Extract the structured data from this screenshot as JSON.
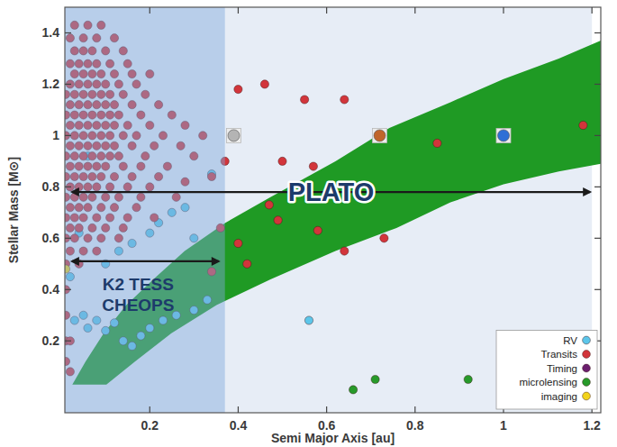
{
  "chart_data": {
    "type": "scatter",
    "xlabel": "Semi Major Axis [au]",
    "ylabel": "Stellar Mass [M⊙]",
    "xlim": [
      0.008,
      1.22
    ],
    "ylim": [
      -0.08,
      1.5
    ],
    "xticks": [
      0.2,
      0.4,
      0.6,
      0.8,
      1,
      1.2
    ],
    "yticks": [
      0.2,
      0.4,
      0.6,
      0.8,
      1,
      1.2,
      1.4
    ],
    "grid": false,
    "legend": "lower right",
    "regions": [
      {
        "x": [
          0.008,
          1.2
        ],
        "color": "#e7edf6"
      },
      {
        "x": [
          0.008,
          0.37
        ],
        "color": "#7fa8dc"
      }
    ],
    "band": {
      "color": "#1f9a24",
      "upper_x": [
        0.025,
        0.055,
        0.096,
        0.147,
        0.208,
        0.279,
        0.371,
        0.473,
        0.62,
        0.742,
        0.88,
        1.0,
        1.125,
        1.22
      ],
      "upper_y": [
        0.03,
        0.12,
        0.23,
        0.34,
        0.44,
        0.55,
        0.66,
        0.76,
        0.9,
        1.03,
        1.13,
        1.22,
        1.3,
        1.37
      ],
      "lower_x": [
        0.102,
        0.167,
        0.249,
        0.351,
        0.473,
        0.62,
        0.758,
        0.88,
        1.0,
        1.125,
        1.22
      ],
      "lower_y": [
        0.03,
        0.12,
        0.23,
        0.34,
        0.44,
        0.55,
        0.64,
        0.74,
        0.81,
        0.86,
        0.89
      ]
    },
    "arrows": [
      {
        "label": [
          "PLATO"
        ],
        "x": [
          0.02,
          1.2
        ],
        "y": 0.78
      },
      {
        "label": [
          "K2 TESS",
          "CHEOPS"
        ],
        "x": [
          0.02,
          0.36
        ],
        "y": 0.51
      }
    ],
    "solar_system": {
      "x": [
        0.39,
        0.72,
        1
      ],
      "values": [
        1,
        1,
        1
      ],
      "colors": [
        "#b4b4b4",
        "#c0652a",
        "#2f6fd6"
      ]
    },
    "series": [
      {
        "name": "RV",
        "color": "#5cc6ea",
        "marker": "circle",
        "x": [
          0.02,
          0.03,
          0.05,
          0.06,
          0.08,
          0.1,
          0.12,
          0.14,
          0.16,
          0.18,
          0.2,
          0.23,
          0.26,
          0.3,
          0.33,
          0.1,
          0.13,
          0.16,
          0.2,
          0.22,
          0.25,
          0.28,
          0.3,
          0.34,
          0.04,
          0.06,
          0.56
        ],
        "values": [
          0.45,
          0.28,
          0.3,
          0.25,
          0.28,
          0.24,
          0.27,
          0.2,
          0.18,
          0.22,
          0.25,
          0.28,
          0.3,
          0.32,
          0.36,
          0.5,
          0.55,
          0.58,
          0.62,
          0.66,
          0.7,
          0.72,
          0.6,
          0.85,
          0.62,
          0.92,
          0.28
        ]
      },
      {
        "name": "Transits",
        "color": "#d2353b",
        "marker": "circle",
        "x": [
          0.03,
          0.06,
          0.09,
          0.02,
          0.05,
          0.08,
          0.12,
          0.03,
          0.05,
          0.07,
          0.1,
          0.14,
          0.02,
          0.04,
          0.06,
          0.08,
          0.11,
          0.15,
          0.03,
          0.05,
          0.07,
          0.09,
          0.12,
          0.16,
          0.2,
          0.02,
          0.04,
          0.06,
          0.08,
          0.1,
          0.13,
          0.17,
          0.01,
          0.03,
          0.05,
          0.07,
          0.09,
          0.11,
          0.14,
          0.19,
          0.02,
          0.04,
          0.06,
          0.08,
          0.1,
          0.12,
          0.16,
          0.22,
          0.01,
          0.03,
          0.05,
          0.07,
          0.09,
          0.11,
          0.13,
          0.18,
          0.25,
          0.02,
          0.04,
          0.06,
          0.08,
          0.1,
          0.12,
          0.15,
          0.2,
          0.28,
          0.01,
          0.03,
          0.05,
          0.07,
          0.09,
          0.11,
          0.14,
          0.17,
          0.23,
          0.32,
          0.02,
          0.04,
          0.06,
          0.08,
          0.1,
          0.12,
          0.16,
          0.21,
          0.27,
          0.01,
          0.03,
          0.05,
          0.07,
          0.09,
          0.11,
          0.13,
          0.19,
          0.3,
          0.02,
          0.04,
          0.06,
          0.08,
          0.1,
          0.14,
          0.18,
          0.24,
          0.01,
          0.03,
          0.05,
          0.07,
          0.09,
          0.12,
          0.16,
          0.22,
          0.34,
          0.02,
          0.04,
          0.06,
          0.08,
          0.11,
          0.15,
          0.2,
          0.01,
          0.03,
          0.05,
          0.07,
          0.1,
          0.13,
          0.18,
          0.26,
          0.02,
          0.04,
          0.06,
          0.09,
          0.12,
          0.17,
          0.01,
          0.03,
          0.05,
          0.08,
          0.11,
          0.15,
          0.21,
          0.02,
          0.04,
          0.07,
          0.1,
          0.14,
          0.01,
          0.03,
          0.06,
          0.09,
          0.13,
          0.02,
          0.05,
          0.08,
          0.01,
          0.04,
          0.01,
          0.01,
          0.01,
          0.02,
          0.01,
          0.02,
          0.46,
          0.55,
          0.64,
          0.4,
          0.5,
          0.57,
          0.85,
          1.18,
          0.37,
          0.47,
          0.49,
          0.4,
          0.42,
          0.64,
          0.73,
          0.58,
          0.34,
          0.36,
          0.28
        ],
        "values": [
          1.43,
          1.43,
          1.43,
          1.38,
          1.38,
          1.38,
          1.38,
          1.33,
          1.33,
          1.33,
          1.33,
          1.33,
          1.28,
          1.28,
          1.28,
          1.28,
          1.28,
          1.28,
          1.24,
          1.24,
          1.24,
          1.24,
          1.24,
          1.24,
          1.24,
          1.2,
          1.2,
          1.2,
          1.2,
          1.2,
          1.2,
          1.2,
          1.16,
          1.16,
          1.16,
          1.16,
          1.16,
          1.16,
          1.16,
          1.16,
          1.12,
          1.12,
          1.12,
          1.12,
          1.12,
          1.12,
          1.12,
          1.12,
          1.08,
          1.08,
          1.08,
          1.08,
          1.08,
          1.08,
          1.08,
          1.08,
          1.08,
          1.04,
          1.04,
          1.04,
          1.04,
          1.04,
          1.04,
          1.04,
          1.04,
          1.04,
          1,
          1,
          1,
          1,
          1,
          1,
          1,
          1,
          1,
          1,
          0.96,
          0.96,
          0.96,
          0.96,
          0.96,
          0.96,
          0.96,
          0.96,
          0.96,
          0.92,
          0.92,
          0.92,
          0.92,
          0.92,
          0.92,
          0.92,
          0.92,
          0.92,
          0.88,
          0.88,
          0.88,
          0.88,
          0.88,
          0.88,
          0.88,
          0.88,
          0.84,
          0.84,
          0.84,
          0.84,
          0.84,
          0.84,
          0.84,
          0.84,
          0.84,
          0.8,
          0.8,
          0.8,
          0.8,
          0.8,
          0.8,
          0.8,
          0.76,
          0.76,
          0.76,
          0.76,
          0.76,
          0.76,
          0.76,
          0.76,
          0.72,
          0.72,
          0.72,
          0.72,
          0.72,
          0.72,
          0.68,
          0.68,
          0.68,
          0.68,
          0.68,
          0.68,
          0.68,
          0.64,
          0.64,
          0.64,
          0.64,
          0.64,
          0.6,
          0.6,
          0.6,
          0.6,
          0.6,
          0.55,
          0.55,
          0.55,
          0.5,
          0.5,
          0.4,
          0.3,
          0.2,
          0.2,
          0.12,
          0.08,
          1.2,
          1.14,
          1.14,
          1.18,
          0.9,
          0.88,
          0.97,
          1.04,
          0.9,
          0.73,
          0.67,
          0.58,
          0.5,
          0.55,
          0.6,
          0.63,
          0.47,
          0.64,
          0.82
        ]
      },
      {
        "name": "Timing",
        "color": "#6b1f6e",
        "marker": "circle",
        "x": [],
        "values": []
      },
      {
        "name": "microlensing",
        "color": "#279a2a",
        "marker": "circle",
        "x": [
          0.66,
          0.71,
          0.92
        ],
        "values": [
          0.01,
          0.05,
          0.05
        ]
      },
      {
        "name": "imaging",
        "color": "#f2d31b",
        "marker": "circle",
        "x": [
          0.01
        ],
        "values": [
          0.48
        ]
      }
    ]
  }
}
